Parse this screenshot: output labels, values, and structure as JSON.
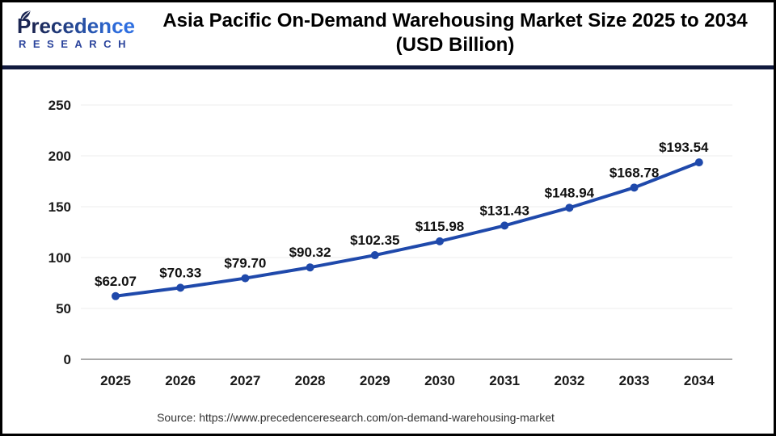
{
  "header": {
    "logo": {
      "name": "Precedence",
      "subname": "RESEARCH"
    },
    "title_line1": "Asia Pacific On-Demand Warehousing Market Size 2025 to 2034",
    "title_line2": "(USD Billion)"
  },
  "chart_data": {
    "type": "line",
    "title": "Asia Pacific On-Demand Warehousing Market Size 2025 to 2034 (USD Billion)",
    "categories": [
      "2025",
      "2026",
      "2027",
      "2028",
      "2029",
      "2030",
      "2031",
      "2032",
      "2033",
      "2034"
    ],
    "values": [
      62.07,
      70.33,
      79.7,
      90.32,
      102.35,
      115.98,
      131.43,
      148.94,
      168.78,
      193.54
    ],
    "point_labels": [
      "$62.07",
      "$70.33",
      "$79.70",
      "$90.32",
      "$102.35",
      "$115.98",
      "$131.43",
      "$148.94",
      "$168.78",
      "$193.54"
    ],
    "xlabel": "",
    "ylabel": "",
    "ylim": [
      0,
      250
    ],
    "yticks": [
      0,
      50,
      100,
      150,
      200,
      250
    ],
    "grid": true,
    "legend": "none",
    "line_color": "#1f49ab",
    "marker_color": "#1f49ab",
    "data_label_color": "#111111",
    "axis_label_color": "#1a1a1a",
    "gridline_color": "#ececec",
    "baseline_color": "#a9a9a9"
  },
  "footer": {
    "source_text": "Source: https://www.precedenceresearch.com/on-demand-warehousing-market"
  },
  "theme": {
    "border_color": "#000000",
    "divider_color": "#111a3e",
    "logo_navy": "#1b2653",
    "logo_blue": "#2f6fe0",
    "logo_sub_blue": "#2b449c"
  }
}
